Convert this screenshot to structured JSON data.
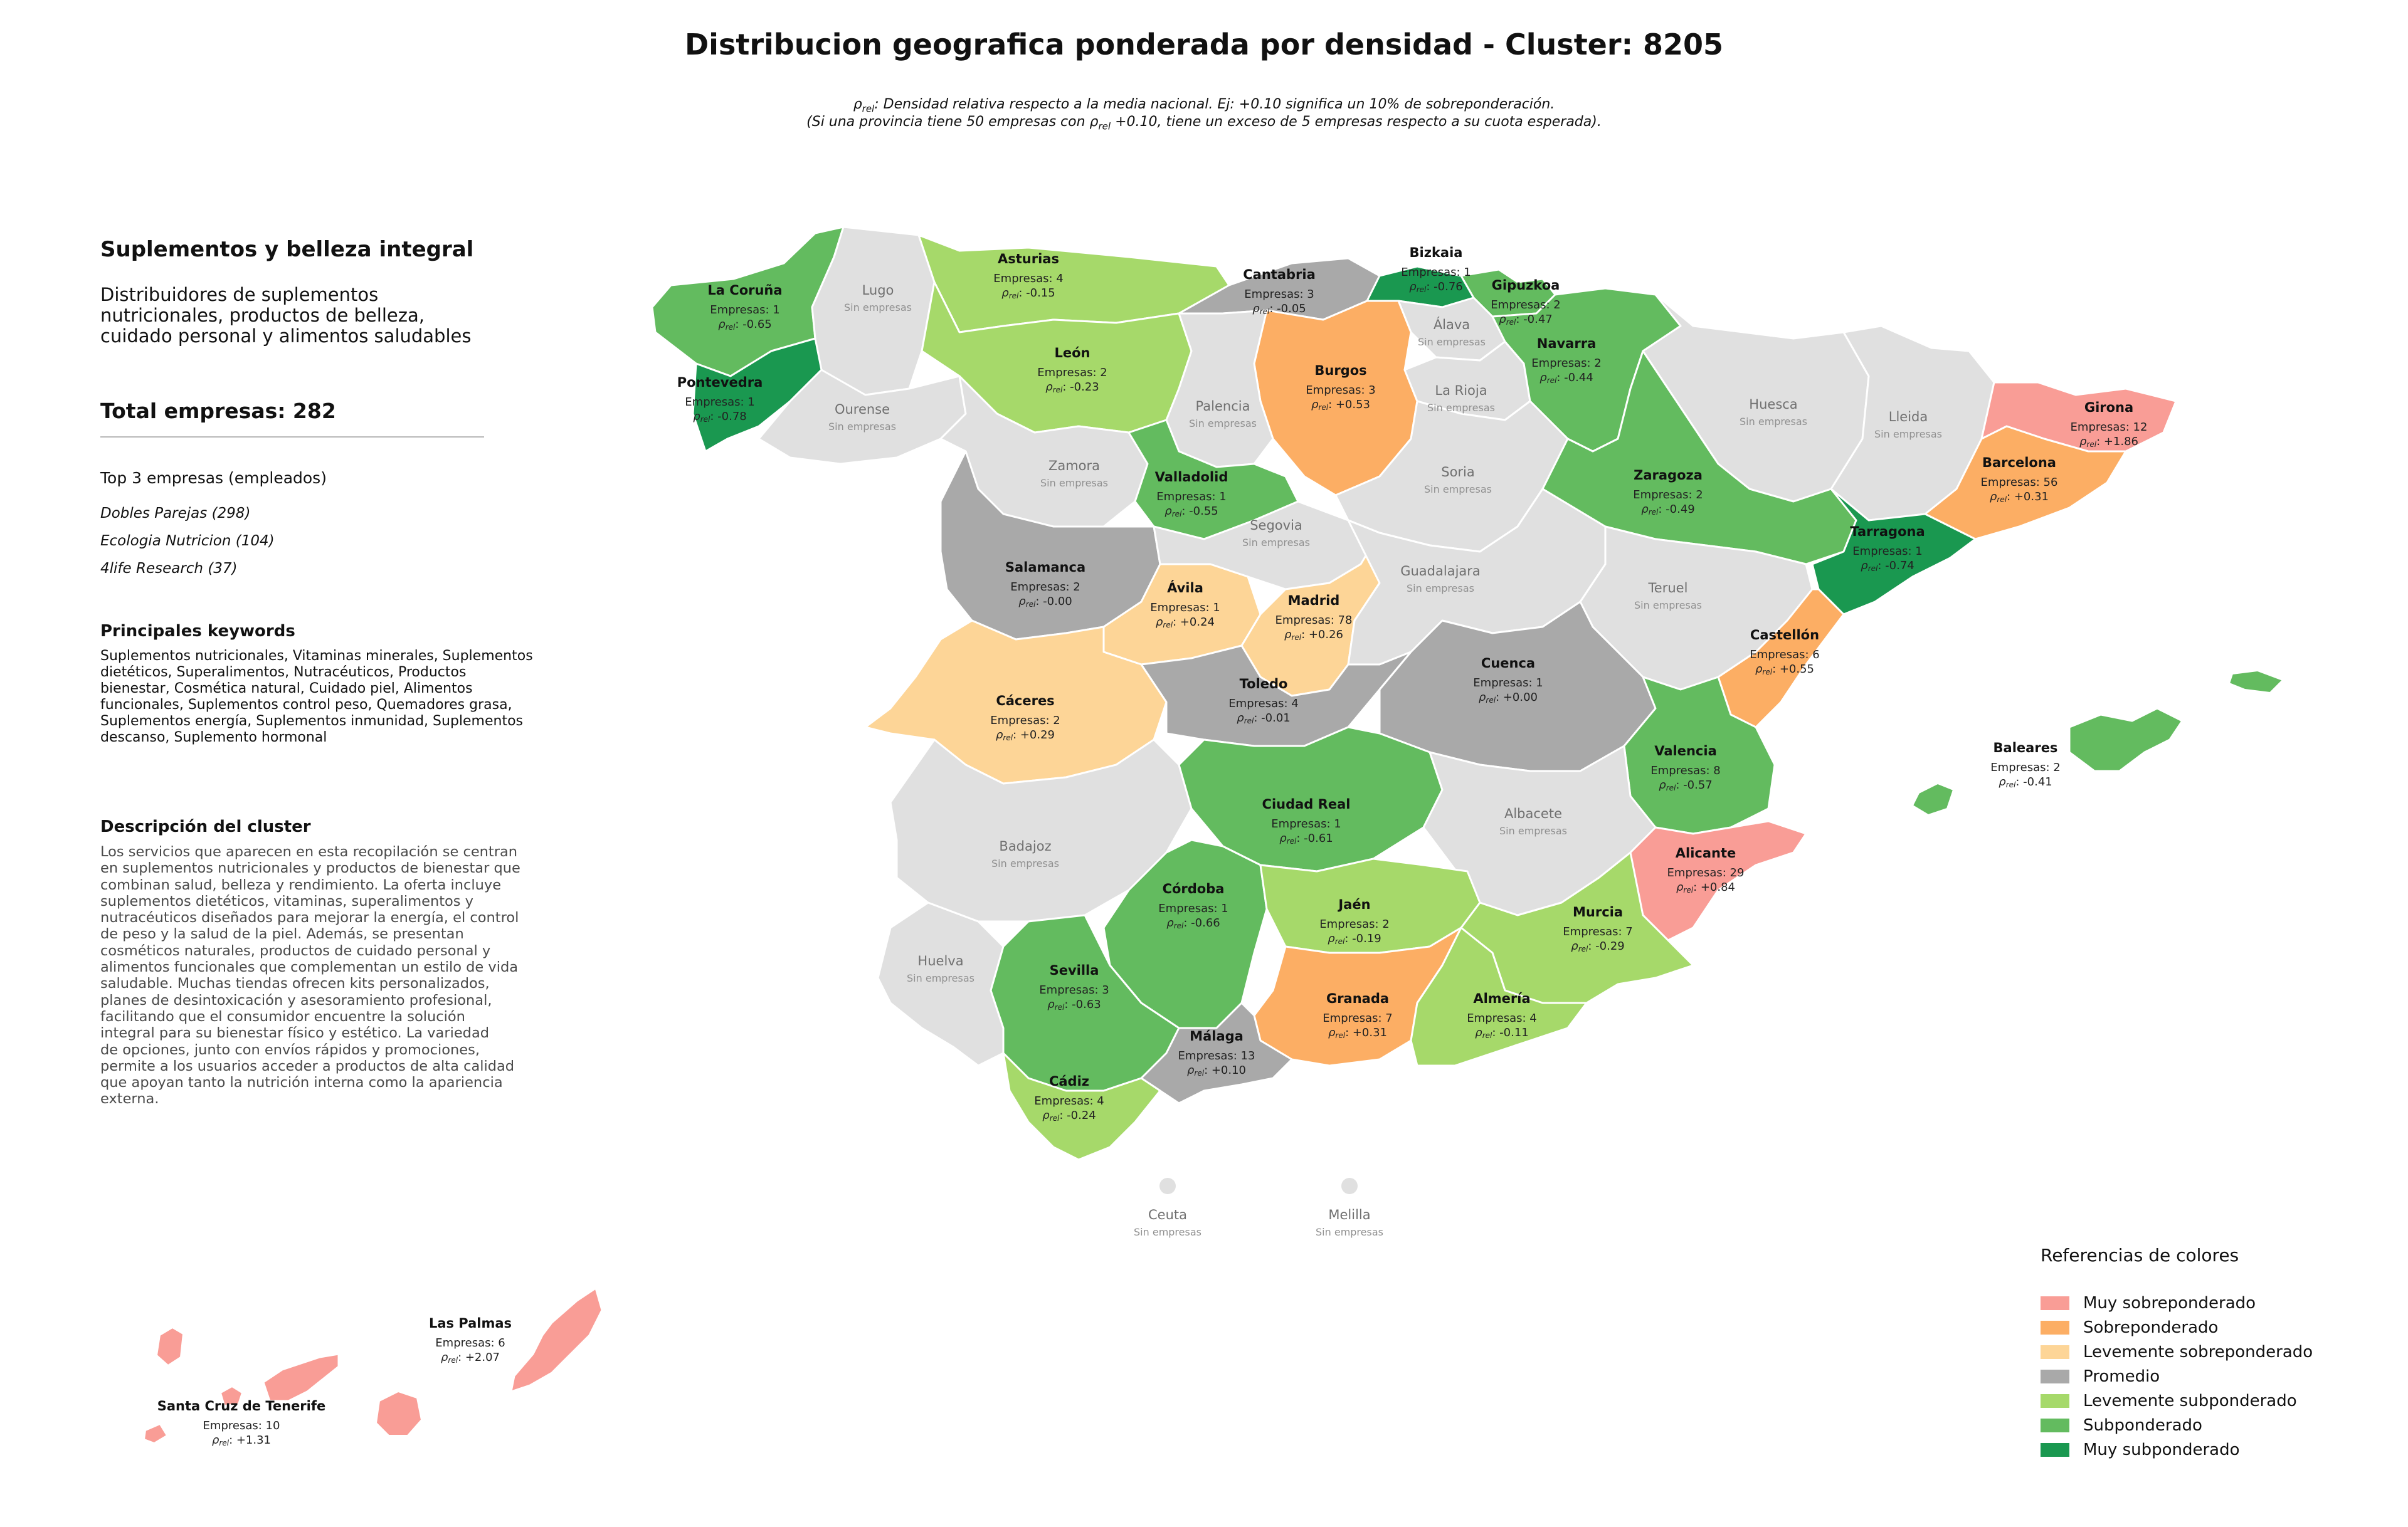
{
  "title": "Distribucion geografica ponderada por densidad - Cluster: 8205",
  "notes": {
    "line1_symbol": "ρ",
    "line1_subscript": "rel",
    "line1_text": ": Densidad relativa respecto a la media nacional. Ej: +0.10 significa un 10% de sobreponderación.",
    "line2_prefix": "(Si una provincia tiene 50 empresas con ",
    "line2_suffix": " +0.10, tiene un exceso de 5 empresas respecto a su cuota esperada)."
  },
  "panel": {
    "title": "Suplementos y belleza integral",
    "subtitle_lines": [
      "Distribuidores de suplementos",
      "nutricionales, productos de belleza,",
      "cuidado personal y alimentos saludables"
    ],
    "total": "Total empresas: 282",
    "top_label": "Top 3 empresas (empleados)",
    "top_companies": [
      "Dobles Parejas (298)",
      "Ecologia Nutricion (104)",
      "4life Research (37)"
    ],
    "keywords_title": "Principales keywords",
    "keywords_lines": [
      "Suplementos nutricionales, Vitaminas minerales, Suplementos",
      "dietéticos, Superalimentos, Nutracéuticos, Productos",
      "bienestar, Cosmética natural, Cuidado piel, Alimentos",
      "funcionales, Suplementos control peso, Quemadores grasa,",
      "Suplementos energía, Suplementos inmunidad, Suplementos",
      "descanso, Suplemento hormonal"
    ],
    "description_title": "Descripción del cluster",
    "description_lines": [
      "Los servicios que aparecen en esta recopilación se centran",
      "en suplementos nutricionales y productos de bienestar que",
      "combinan salud, belleza y rendimiento. La oferta incluye",
      "suplementos dietéticos, vitaminas, superalimentos y",
      "nutracéuticos diseñados para mejorar la energía, el control",
      "de peso y la salud de la piel. Además, se presentan",
      "cosméticos naturales, productos de cuidado personal y",
      "alimentos funcionales que complementan un estilo de vida",
      "saludable. Muchas tiendas ofrecen kits personalizados,",
      "planes de desintoxicación y asesoramiento profesional,",
      "facilitando que el consumidor encuentre la solución",
      "integral para su bienestar físico y estético. La variedad",
      "de opciones, junto con envíos rápidos y promociones,",
      "permite a los usuarios acceder a productos de alta calidad",
      "que apoyan tanto la nutrición interna como la apariencia",
      "externa."
    ]
  },
  "labels": {
    "empresas_prefix": "Empresas: ",
    "rho_symbol": "ρ",
    "rho_subscript": "rel",
    "no_data": "Sin empresas"
  },
  "colors": {
    "muy_sobre": "#f99d96",
    "sobre": "#fcae64",
    "lev_sobre": "#fdd597",
    "promedio": "#a9a9a9",
    "lev_sub": "#a6d96a",
    "sub": "#63bb5f",
    "muy_sub": "#1a9850",
    "none": "#e0e0e0"
  },
  "legend": {
    "title": "Referencias de colores",
    "items": [
      {
        "label": "Muy sobreponderado",
        "color": "#f99d96"
      },
      {
        "label": "Sobreponderado",
        "color": "#fcae64"
      },
      {
        "label": "Levemente sobreponderado",
        "color": "#fdd597"
      },
      {
        "label": "Promedio",
        "color": "#a9a9a9"
      },
      {
        "label": "Levemente subponderado",
        "color": "#a6d96a"
      },
      {
        "label": "Subponderado",
        "color": "#63bb5f"
      },
      {
        "label": "Muy subponderado",
        "color": "#1a9850"
      }
    ]
  },
  "provinces": [
    {
      "name": "La Coruña",
      "companies": 1,
      "rho": "-0.65",
      "category": "sub"
    },
    {
      "name": "Lugo",
      "companies": null,
      "rho": null,
      "category": "none"
    },
    {
      "name": "Asturias",
      "companies": 4,
      "rho": "-0.15",
      "category": "lev_sub"
    },
    {
      "name": "Cantabria",
      "companies": 3,
      "rho": "-0.05",
      "category": "promedio"
    },
    {
      "name": "Bizkaia",
      "companies": 1,
      "rho": "-0.76",
      "category": "muy_sub"
    },
    {
      "name": "Gipuzkoa",
      "companies": 2,
      "rho": "-0.47",
      "category": "sub"
    },
    {
      "name": "Álava",
      "companies": null,
      "rho": null,
      "category": "none"
    },
    {
      "name": "Pontevedra",
      "companies": 1,
      "rho": "-0.78",
      "category": "muy_sub"
    },
    {
      "name": "Ourense",
      "companies": null,
      "rho": null,
      "category": "none"
    },
    {
      "name": "León",
      "companies": 2,
      "rho": "-0.23",
      "category": "lev_sub"
    },
    {
      "name": "Burgos",
      "companies": 3,
      "rho": "+0.53",
      "category": "sobre"
    },
    {
      "name": "Palencia",
      "companies": null,
      "rho": null,
      "category": "none"
    },
    {
      "name": "La Rioja",
      "companies": null,
      "rho": null,
      "category": "none"
    },
    {
      "name": "Navarra",
      "companies": 2,
      "rho": "-0.44",
      "category": "sub"
    },
    {
      "name": "Huesca",
      "companies": null,
      "rho": null,
      "category": "none"
    },
    {
      "name": "Lleida",
      "companies": null,
      "rho": null,
      "category": "none"
    },
    {
      "name": "Girona",
      "companies": 12,
      "rho": "+1.86",
      "category": "muy_sobre"
    },
    {
      "name": "Barcelona",
      "companies": 56,
      "rho": "+0.31",
      "category": "sobre"
    },
    {
      "name": "Zamora",
      "companies": null,
      "rho": null,
      "category": "none"
    },
    {
      "name": "Valladolid",
      "companies": 1,
      "rho": "-0.55",
      "category": "sub"
    },
    {
      "name": "Soria",
      "companies": null,
      "rho": null,
      "category": "none"
    },
    {
      "name": "Zaragoza",
      "companies": 2,
      "rho": "-0.49",
      "category": "sub"
    },
    {
      "name": "Tarragona",
      "companies": 1,
      "rho": "-0.74",
      "category": "muy_sub"
    },
    {
      "name": "Salamanca",
      "companies": 2,
      "rho": "-0.00",
      "category": "promedio"
    },
    {
      "name": "Segovia",
      "companies": null,
      "rho": null,
      "category": "none"
    },
    {
      "name": "Ávila",
      "companies": 1,
      "rho": "+0.24",
      "category": "lev_sobre"
    },
    {
      "name": "Madrid",
      "companies": 78,
      "rho": "+0.26",
      "category": "lev_sobre"
    },
    {
      "name": "Guadalajara",
      "companies": null,
      "rho": null,
      "category": "none"
    },
    {
      "name": "Teruel",
      "companies": null,
      "rho": null,
      "category": "none"
    },
    {
      "name": "Castellón",
      "companies": 6,
      "rho": "+0.55",
      "category": "sobre"
    },
    {
      "name": "Cáceres",
      "companies": 2,
      "rho": "+0.29",
      "category": "lev_sobre"
    },
    {
      "name": "Toledo",
      "companies": 4,
      "rho": "-0.01",
      "category": "promedio"
    },
    {
      "name": "Cuenca",
      "companies": 1,
      "rho": "+0.00",
      "category": "promedio"
    },
    {
      "name": "Valencia",
      "companies": 8,
      "rho": "-0.57",
      "category": "sub"
    },
    {
      "name": "Baleares",
      "companies": 2,
      "rho": "-0.41",
      "category": "sub"
    },
    {
      "name": "Badajoz",
      "companies": null,
      "rho": null,
      "category": "none"
    },
    {
      "name": "Ciudad Real",
      "companies": 1,
      "rho": "-0.61",
      "category": "sub"
    },
    {
      "name": "Albacete",
      "companies": null,
      "rho": null,
      "category": "none"
    },
    {
      "name": "Alicante",
      "companies": 29,
      "rho": "+0.84",
      "category": "muy_sobre"
    },
    {
      "name": "Córdoba",
      "companies": 1,
      "rho": "-0.66",
      "category": "sub"
    },
    {
      "name": "Jaén",
      "companies": 2,
      "rho": "-0.19",
      "category": "lev_sub"
    },
    {
      "name": "Murcia",
      "companies": 7,
      "rho": "-0.29",
      "category": "lev_sub"
    },
    {
      "name": "Huelva",
      "companies": null,
      "rho": null,
      "category": "none"
    },
    {
      "name": "Sevilla",
      "companies": 3,
      "rho": "-0.63",
      "category": "sub"
    },
    {
      "name": "Granada",
      "companies": 7,
      "rho": "+0.31",
      "category": "sobre"
    },
    {
      "name": "Almería",
      "companies": 4,
      "rho": "-0.11",
      "category": "lev_sub"
    },
    {
      "name": "Málaga",
      "companies": 13,
      "rho": "+0.10",
      "category": "promedio"
    },
    {
      "name": "Cádiz",
      "companies": 4,
      "rho": "-0.24",
      "category": "lev_sub"
    },
    {
      "name": "Ceuta",
      "companies": null,
      "rho": null,
      "category": "none"
    },
    {
      "name": "Melilla",
      "companies": null,
      "rho": null,
      "category": "none"
    },
    {
      "name": "Las Palmas",
      "companies": 6,
      "rho": "+2.07",
      "category": "muy_sobre"
    },
    {
      "name": "Santa Cruz de Tenerife",
      "companies": 10,
      "rho": "+1.31",
      "category": "muy_sobre"
    }
  ]
}
